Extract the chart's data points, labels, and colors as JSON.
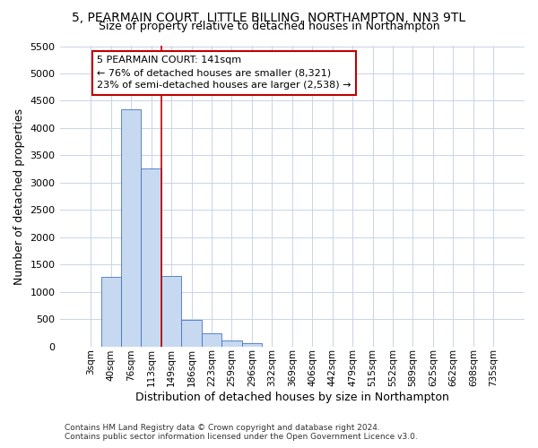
{
  "title_line1": "5, PEARMAIN COURT, LITTLE BILLING, NORTHAMPTON, NN3 9TL",
  "title_line2": "Size of property relative to detached houses in Northampton",
  "xlabel": "Distribution of detached houses by size in Northampton",
  "ylabel": "Number of detached properties",
  "footnote": "Contains HM Land Registry data © Crown copyright and database right 2024.\nContains public sector information licensed under the Open Government Licence v3.0.",
  "bar_labels": [
    "3sqm",
    "40sqm",
    "76sqm",
    "113sqm",
    "149sqm",
    "186sqm",
    "223sqm",
    "259sqm",
    "296sqm",
    "332sqm",
    "369sqm",
    "406sqm",
    "442sqm",
    "479sqm",
    "515sqm",
    "552sqm",
    "589sqm",
    "625sqm",
    "662sqm",
    "698sqm",
    "735sqm"
  ],
  "bar_values": [
    0,
    1270,
    4340,
    3260,
    1290,
    480,
    235,
    100,
    60,
    0,
    0,
    0,
    0,
    0,
    0,
    0,
    0,
    0,
    0,
    0,
    0
  ],
  "bar_color": "#c6d9f0",
  "bar_edge_color": "#4472c4",
  "vline_x_idx": 4,
  "vline_color": "#c00000",
  "annotation_text": "5 PEARMAIN COURT: 141sqm\n← 76% of detached houses are smaller (8,321)\n23% of semi-detached houses are larger (2,538) →",
  "annotation_box_color": "#c00000",
  "ylim": [
    0,
    5500
  ],
  "yticks": [
    0,
    500,
    1000,
    1500,
    2000,
    2500,
    3000,
    3500,
    4000,
    4500,
    5000,
    5500
  ],
  "background_color": "#ffffff",
  "grid_color": "#c8d4e8"
}
